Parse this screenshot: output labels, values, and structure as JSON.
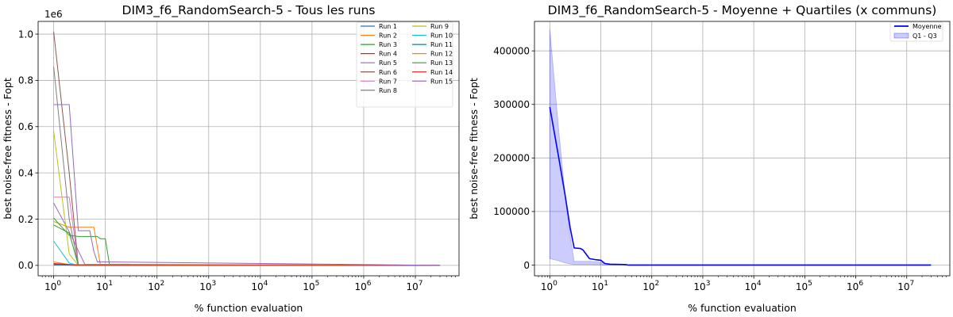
{
  "chart_data": [
    {
      "type": "line",
      "title": "DIM3_f6_RandomSearch-5 - Tous les runs",
      "xlabel": "% function evaluation",
      "ylabel": "best noise-free fitness - Fopt",
      "x_scale": "log",
      "xlim": [
        0.5,
        70000000
      ],
      "ylim": [
        -0.045,
        1.055
      ],
      "y_offset_label": "1e6",
      "y_unit_scale": 1000000,
      "x_ticks": [
        1,
        10,
        100,
        1000,
        10000,
        100000,
        1000000,
        10000000
      ],
      "x_tick_labels": [
        [
          "10",
          "0"
        ],
        [
          "10",
          "1"
        ],
        [
          "10",
          "2"
        ],
        [
          "10",
          "3"
        ],
        [
          "10",
          "4"
        ],
        [
          "10",
          "5"
        ],
        [
          "10",
          "6"
        ],
        [
          "10",
          "7"
        ]
      ],
      "y_ticks": [
        0,
        0.2,
        0.4,
        0.6,
        0.8,
        1.0
      ],
      "y_tick_labels": [
        "0.0",
        "0.2",
        "0.4",
        "0.6",
        "0.8",
        "1.0"
      ],
      "grid": true,
      "legend_position": "top-right",
      "series": [
        {
          "name": "Run 1",
          "color": "#1f77b4",
          "x": [
            1,
            2,
            3,
            10,
            30000000
          ],
          "y": [
            0.005,
            0.003,
            0.001,
            0.0,
            0.0
          ]
        },
        {
          "name": "Run 2",
          "color": "#ff7f0e",
          "x": [
            1,
            2,
            6,
            8,
            30000000
          ],
          "y": [
            0.19,
            0.165,
            0.165,
            0.004,
            0.0
          ]
        },
        {
          "name": "Run 3",
          "color": "#2ca02c",
          "x": [
            1,
            2,
            3,
            4,
            7,
            8,
            9,
            10,
            12,
            30,
            35,
            30000000
          ],
          "y": [
            0.205,
            0.13,
            0.125,
            0.125,
            0.125,
            0.115,
            0.115,
            0.115,
            0.005,
            0.005,
            0.0,
            0.0
          ]
        },
        {
          "name": "Run 4",
          "color": "#d62728",
          "x": [
            1,
            2,
            4,
            30000000
          ],
          "y": [
            0.002,
            0.001,
            0.0,
            0.0
          ]
        },
        {
          "name": "Run 5",
          "color": "#9467bd",
          "x": [
            1,
            2,
            4,
            30000000
          ],
          "y": [
            0.27,
            0.145,
            0.005,
            0.0
          ]
        },
        {
          "name": "Run 6",
          "color": "#8c564b",
          "x": [
            1,
            2,
            3,
            30000000
          ],
          "y": [
            1.01,
            0.4,
            0.0,
            0.0
          ]
        },
        {
          "name": "Run 7",
          "color": "#e377c2",
          "x": [
            1,
            2,
            3,
            30000000
          ],
          "y": [
            0.295,
            0.295,
            0.0,
            0.0
          ]
        },
        {
          "name": "Run 8",
          "color": "#7f7f7f",
          "x": [
            1,
            2,
            3,
            30000000
          ],
          "y": [
            0.86,
            0.2,
            0.0,
            0.0
          ]
        },
        {
          "name": "Run 9",
          "color": "#bcbd22",
          "x": [
            1,
            2,
            3,
            30000000
          ],
          "y": [
            0.58,
            0.05,
            0.0,
            0.0
          ]
        },
        {
          "name": "Run 10",
          "color": "#17becf",
          "x": [
            1,
            2,
            3,
            30000000
          ],
          "y": [
            0.105,
            0.01,
            0.0,
            0.0
          ]
        },
        {
          "name": "Run 11",
          "color": "#1f77b4",
          "x": [
            1,
            2,
            3,
            30000000
          ],
          "y": [
            0.002,
            0.002,
            0.0,
            0.0
          ]
        },
        {
          "name": "Run 12",
          "color": "#ff7f0e",
          "x": [
            1,
            2,
            30000000
          ],
          "y": [
            0.015,
            0.004,
            0.0
          ]
        },
        {
          "name": "Run 13",
          "color": "#2ca02c",
          "x": [
            1,
            2,
            3,
            30000000
          ],
          "y": [
            0.175,
            0.14,
            0.0,
            0.0
          ]
        },
        {
          "name": "Run 14",
          "color": "#d62728",
          "x": [
            1,
            2,
            3,
            30000000
          ],
          "y": [
            0.008,
            0.004,
            0.0,
            0.0
          ]
        },
        {
          "name": "Run 15",
          "color": "#9467bd",
          "x": [
            1,
            2,
            3,
            4,
            5,
            6,
            7,
            12,
            30000000
          ],
          "y": [
            0.695,
            0.695,
            0.15,
            0.15,
            0.15,
            0.06,
            0.015,
            0.015,
            0.0
          ]
        }
      ]
    },
    {
      "type": "line",
      "title": "DIM3_f6_RandomSearch-5 - Moyenne + Quartiles (x communs)",
      "xlabel": "% function evaluation",
      "ylabel": "best noise-free fitness - Fopt",
      "x_scale": "log",
      "xlim": [
        0.5,
        70000000
      ],
      "ylim": [
        -20000,
        455000
      ],
      "x_ticks": [
        1,
        10,
        100,
        1000,
        10000,
        100000,
        1000000,
        10000000
      ],
      "x_tick_labels": [
        [
          "10",
          "0"
        ],
        [
          "10",
          "1"
        ],
        [
          "10",
          "2"
        ],
        [
          "10",
          "3"
        ],
        [
          "10",
          "4"
        ],
        [
          "10",
          "5"
        ],
        [
          "10",
          "6"
        ],
        [
          "10",
          "7"
        ]
      ],
      "y_ticks": [
        0,
        100000,
        200000,
        300000,
        400000
      ],
      "y_tick_labels": [
        "0",
        "100000",
        "200000",
        "300000",
        "400000"
      ],
      "grid": true,
      "legend_position": "top-right",
      "series": [
        {
          "name": "Moyenne",
          "color": "#0000ff",
          "x": [
            1,
            1.5,
            2,
            2.5,
            3,
            4,
            4.5,
            5,
            6,
            8,
            10,
            12,
            15,
            30,
            35,
            30000000
          ],
          "y": [
            295000,
            200000,
            130000,
            70000,
            32000,
            31000,
            28000,
            22000,
            12000,
            10000,
            9000,
            3000,
            1500,
            1000,
            0,
            0
          ]
        },
        {
          "name": "Q1 - Q3",
          "color": "#0000ff",
          "band": true,
          "x": [
            1,
            1.5,
            2,
            2.5,
            3,
            4,
            6,
            8,
            10,
            12,
            30,
            35,
            30000000
          ],
          "q1": [
            12000,
            8000,
            4000,
            2000,
            1000,
            1000,
            1000,
            800,
            500,
            200,
            100,
            0,
            0
          ],
          "q3": [
            440000,
            250000,
            130000,
            55000,
            7000,
            7000,
            7000,
            6000,
            5000,
            3000,
            1000,
            0,
            0
          ]
        }
      ]
    }
  ]
}
